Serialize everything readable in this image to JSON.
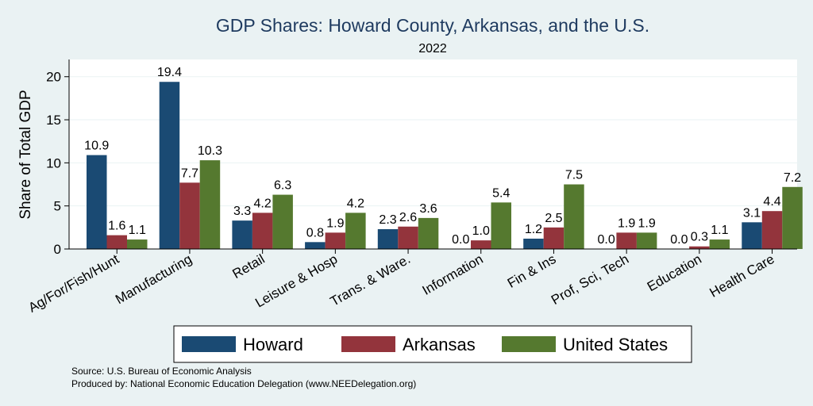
{
  "chart_data": {
    "type": "bar",
    "title": "GDP Shares: Howard County, Arkansas, and the U.S.",
    "subtitle": "2022",
    "xlabel": "",
    "ylabel": "Share of Total GDP",
    "ylim": [
      0,
      22
    ],
    "yticks": [
      0,
      5,
      10,
      15,
      20
    ],
    "grid": true,
    "legend_position": "bottom",
    "categories": [
      "Ag/For/Fish/Hunt",
      "Manufacturing",
      "Retail",
      "Leisure & Hosp",
      "Trans. & Ware.",
      "Information",
      "Fin & Ins",
      "Prof, Sci, Tech",
      "Education",
      "Health Care"
    ],
    "series": [
      {
        "name": "Howard",
        "color": "#1a4a73",
        "values": [
          10.9,
          19.4,
          3.3,
          0.8,
          2.3,
          0.0,
          1.2,
          0.0,
          0.0,
          3.1
        ],
        "labels": [
          "10.9",
          "19.4",
          "3.3",
          "0.8",
          "2.3",
          "0.0",
          "1.2",
          "0.0",
          "0.0",
          "3.1"
        ]
      },
      {
        "name": "Arkansas",
        "color": "#93343c",
        "values": [
          1.6,
          7.7,
          4.2,
          1.9,
          2.6,
          1.0,
          2.5,
          1.9,
          0.3,
          4.4
        ],
        "labels": [
          "1.6",
          "7.7",
          "4.2",
          "1.9",
          "2.6",
          "1.0",
          "2.5",
          "1.9",
          "0.3",
          "4.4"
        ]
      },
      {
        "name": "United States",
        "color": "#55792f",
        "values": [
          1.1,
          10.3,
          6.3,
          4.2,
          3.6,
          5.4,
          7.5,
          1.9,
          1.1,
          7.2
        ],
        "labels": [
          "1.1",
          "10.3",
          "6.3",
          "4.2",
          "3.6",
          "5.4",
          "7.5",
          "1.9",
          "1.1",
          "7.2"
        ]
      }
    ],
    "notes": [
      "Source: U.S. Bureau of Economic Analysis",
      "Produced by: National Economic Education Delegation (www.NEEDelegation.org)"
    ]
  }
}
